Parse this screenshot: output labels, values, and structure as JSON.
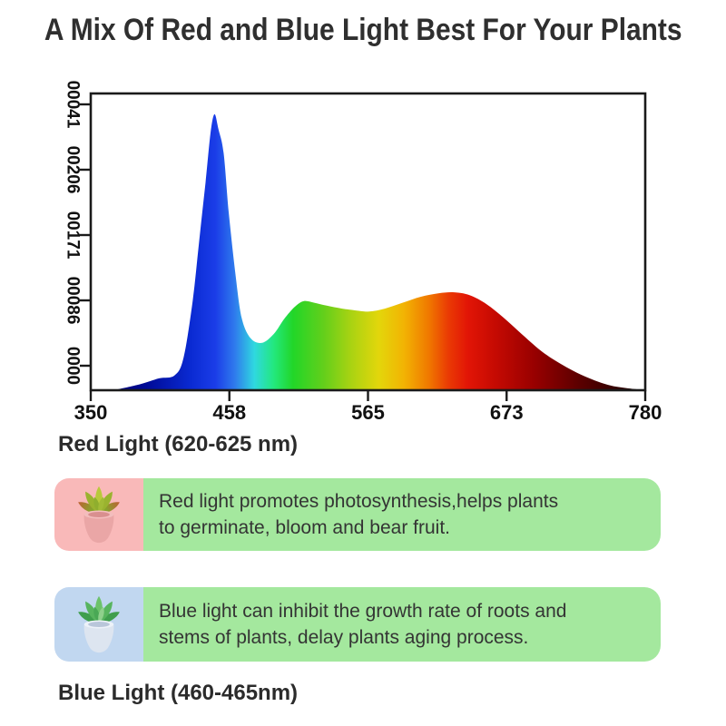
{
  "title": "A Mix Of Red and Blue Light Best For Your Plants",
  "chart_data": {
    "type": "area",
    "title": "",
    "xlabel": "",
    "ylabel": "",
    "xlim": [
      350,
      780
    ],
    "ylim_relative": [
      0,
      1
    ],
    "grid": false,
    "legend": "none",
    "x_tick_labels": [
      "350",
      "458",
      "565",
      "673",
      "780"
    ],
    "y_tick_labels_bottom_to_top": [
      "0000",
      "00086",
      "00171",
      "00206",
      "00041"
    ],
    "y_tick_label_rotation_deg": 90,
    "series": [
      {
        "name": "led-grow-light-spectrum-relative-intensity",
        "x": [
          368,
          388,
          403,
          415,
          422,
          429,
          434,
          439,
          443,
          446,
          449,
          453,
          457,
          462,
          467,
          474,
          483,
          492,
          500,
          508,
          515,
          523,
          533,
          545,
          557,
          566,
          578,
          592,
          606,
          620,
          632,
          644,
          657,
          670,
          684,
          700,
          716,
          734,
          754,
          780
        ],
        "y": [
          0.0,
          0.02,
          0.04,
          0.05,
          0.11,
          0.3,
          0.5,
          0.7,
          0.87,
          0.93,
          0.88,
          0.8,
          0.6,
          0.4,
          0.245,
          0.175,
          0.16,
          0.19,
          0.24,
          0.28,
          0.3,
          0.295,
          0.285,
          0.275,
          0.268,
          0.265,
          0.275,
          0.295,
          0.315,
          0.327,
          0.33,
          0.32,
          0.29,
          0.245,
          0.19,
          0.13,
          0.085,
          0.045,
          0.015,
          0.0
        ]
      }
    ],
    "gradient_stops": [
      {
        "offset": 0.0,
        "color": "#000060"
      },
      {
        "offset": 0.1,
        "color": "#000a96"
      },
      {
        "offset": 0.18,
        "color": "#0a2ad2"
      },
      {
        "offset": 0.225,
        "color": "#1b3de8"
      },
      {
        "offset": 0.26,
        "color": "#2f7bed"
      },
      {
        "offset": 0.295,
        "color": "#2fd8e0"
      },
      {
        "offset": 0.33,
        "color": "#23e87e"
      },
      {
        "offset": 0.365,
        "color": "#22d628"
      },
      {
        "offset": 0.42,
        "color": "#63cf1b"
      },
      {
        "offset": 0.47,
        "color": "#aad312"
      },
      {
        "offset": 0.52,
        "color": "#e3d60b"
      },
      {
        "offset": 0.565,
        "color": "#f2b303"
      },
      {
        "offset": 0.61,
        "color": "#f07800"
      },
      {
        "offset": 0.645,
        "color": "#ea3a04"
      },
      {
        "offset": 0.68,
        "color": "#e21506"
      },
      {
        "offset": 0.73,
        "color": "#c50a02"
      },
      {
        "offset": 0.8,
        "color": "#980000"
      },
      {
        "offset": 0.88,
        "color": "#5c0000"
      },
      {
        "offset": 0.95,
        "color": "#320000"
      },
      {
        "offset": 1.0,
        "color": "#150000"
      }
    ],
    "annotated_peaks": [
      {
        "label": "Blue Light (460-465nm)",
        "approx_peak_nm": 446
      },
      {
        "label": "Red Light (620-625 nm)",
        "approx_peak_nm": 632
      }
    ]
  },
  "sections": {
    "red": {
      "heading": "Red Light (620-625 nm)",
      "line1": "Red light promotes photosynthesis,helps plants",
      "line2": "to germinate, bloom and bear fruit.",
      "icon": "succulent-pink-pot-icon",
      "tile_color": "#f9b9b9",
      "box_color": "#a4e89e"
    },
    "blue": {
      "heading": "Blue Light (460-465nm)",
      "line1": "Blue light can inhibit the growth rate of roots and",
      "line2": "stems of plants, delay plants aging process.",
      "icon": "succulent-blue-pot-icon",
      "tile_color": "#c1d7f0",
      "box_color": "#a4e89e"
    }
  },
  "colors": {
    "background": "#ffffff",
    "title_text": "#2f2f2f",
    "body_text": "#343434",
    "axis": "#1a1a1a"
  }
}
